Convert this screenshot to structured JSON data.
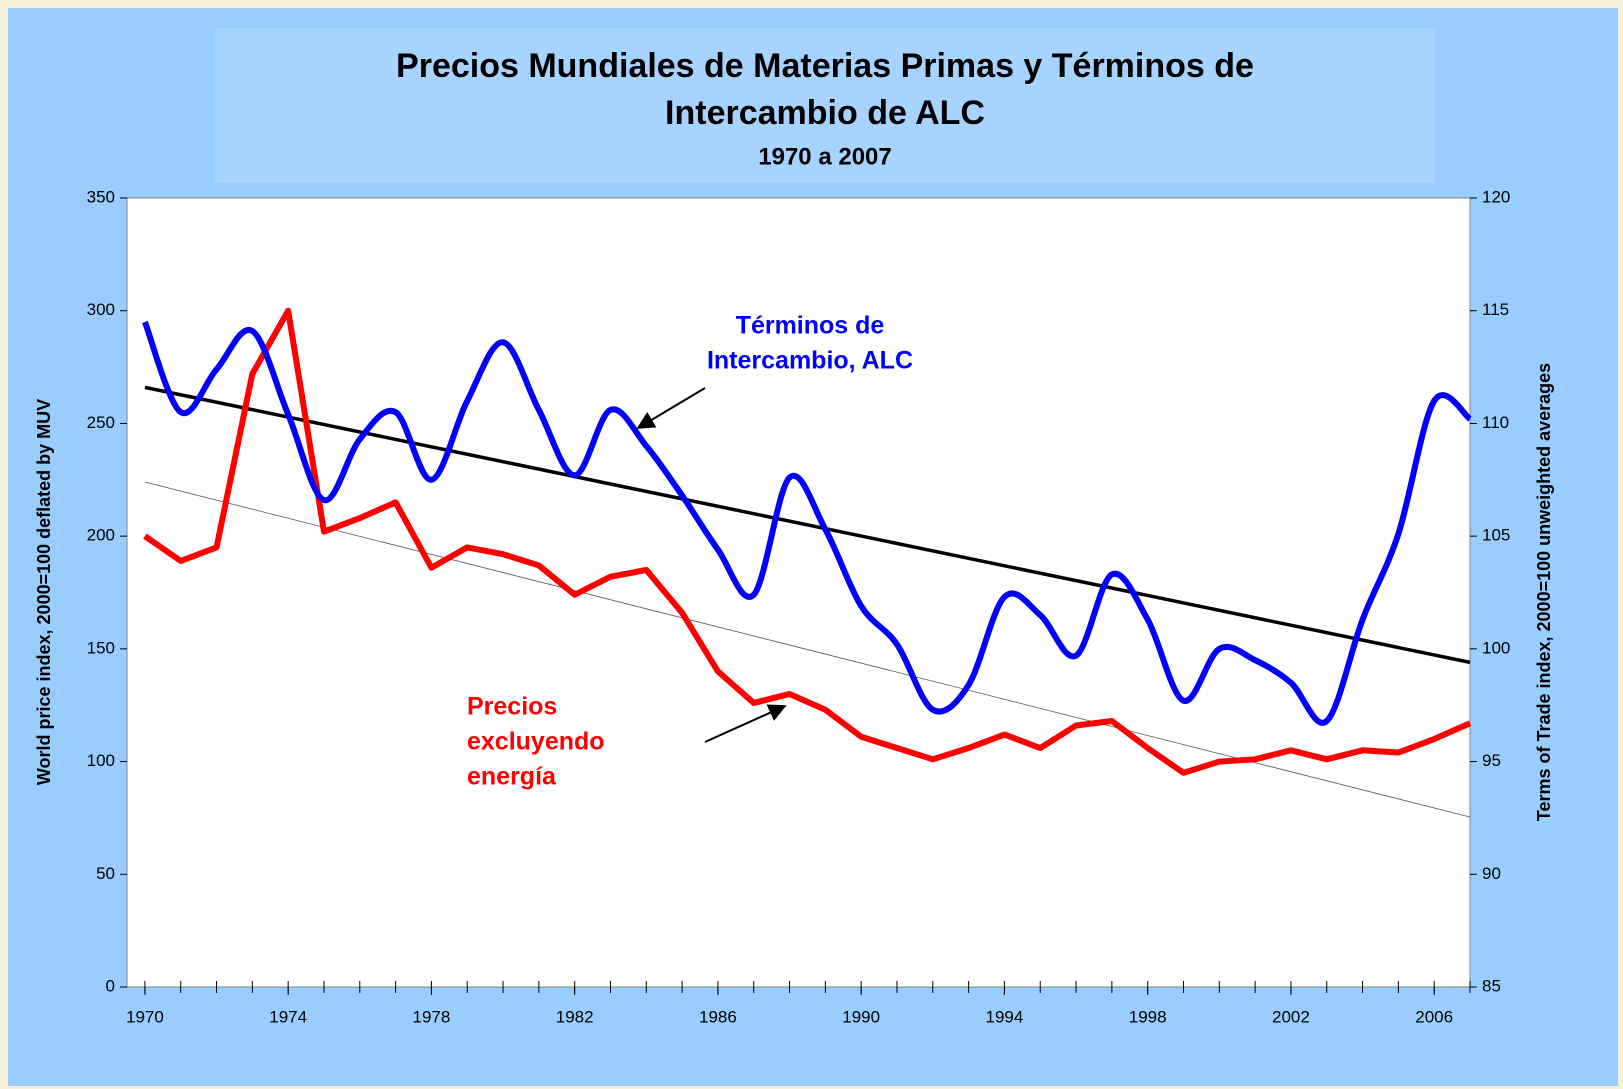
{
  "chart_data": {
    "type": "line",
    "title": [
      "Precios Mundiales de Materias Primas y Términos de",
      "Intercambio de ALC"
    ],
    "subtitle": "1970 a 2007",
    "y_label": "World price index, 2000=100 deflated by MUV",
    "y2_label": "Terms of Trade index, 2000=100 unweighted averages",
    "x": [
      1970,
      1971,
      1972,
      1973,
      1974,
      1975,
      1976,
      1977,
      1978,
      1979,
      1980,
      1981,
      1982,
      1983,
      1984,
      1985,
      1986,
      1987,
      1988,
      1989,
      1990,
      1991,
      1992,
      1993,
      1994,
      1995,
      1996,
      1997,
      1998,
      1999,
      2000,
      2001,
      2002,
      2003,
      2004,
      2005,
      2006,
      2007
    ],
    "series": [
      {
        "color": "#ff0000",
        "smooth": false,
        "values": [
          200,
          189,
          195,
          272,
          300,
          202,
          208,
          215,
          186,
          195,
          192,
          187,
          174,
          182,
          185,
          166,
          140,
          126,
          130,
          123,
          111,
          106,
          101,
          106,
          112,
          106,
          116,
          118,
          106,
          95,
          100,
          101,
          105,
          101,
          105,
          104,
          110,
          117
        ]
      },
      {
        "color": "#0000ff",
        "axis": "y2",
        "smooth": true,
        "values": [
          114.5,
          110.5,
          112.4,
          114.1,
          110.4,
          106.6,
          109.3,
          110.5,
          107.5,
          111.0,
          113.6,
          110.6,
          107.7,
          110.6,
          109.0,
          106.8,
          104.4,
          102.4,
          107.6,
          105.3,
          101.9,
          100.2,
          97.3,
          98.4,
          102.3,
          101.5,
          99.7,
          103.3,
          101.3,
          97.7,
          100.0,
          99.5,
          98.5,
          96.8,
          101.3,
          105.1,
          111.0,
          110.2
        ]
      }
    ],
    "trendlines": [
      {
        "color": "#000000",
        "axis": "y2",
        "x": [
          1970,
          2007
        ],
        "values": [
          111.6,
          99.4
        ],
        "width": 3.5
      },
      {
        "color": "#555555",
        "x": [
          1970,
          2007
        ],
        "values": [
          224,
          75.4
        ],
        "width": 0.8
      }
    ],
    "annotations": [
      {
        "lines": [
          "Términos de",
          "Intercambio, ALC"
        ],
        "color": "#0000ff"
      },
      {
        "lines": [
          "Precios",
          "excluyendo",
          "energía"
        ],
        "color": "#ff0000"
      }
    ],
    "xlim": [
      1969.5,
      2007
    ],
    "xticks": [
      1970,
      1974,
      1978,
      1982,
      1986,
      1990,
      1994,
      1998,
      2002,
      2006
    ],
    "ylim": [
      0,
      350
    ],
    "yticks": [
      0,
      50,
      100,
      150,
      200,
      250,
      300,
      350
    ],
    "y2lim": [
      85,
      120
    ],
    "y2ticks": [
      85,
      90,
      95,
      100,
      105,
      110,
      115,
      120
    ],
    "grid": false
  }
}
